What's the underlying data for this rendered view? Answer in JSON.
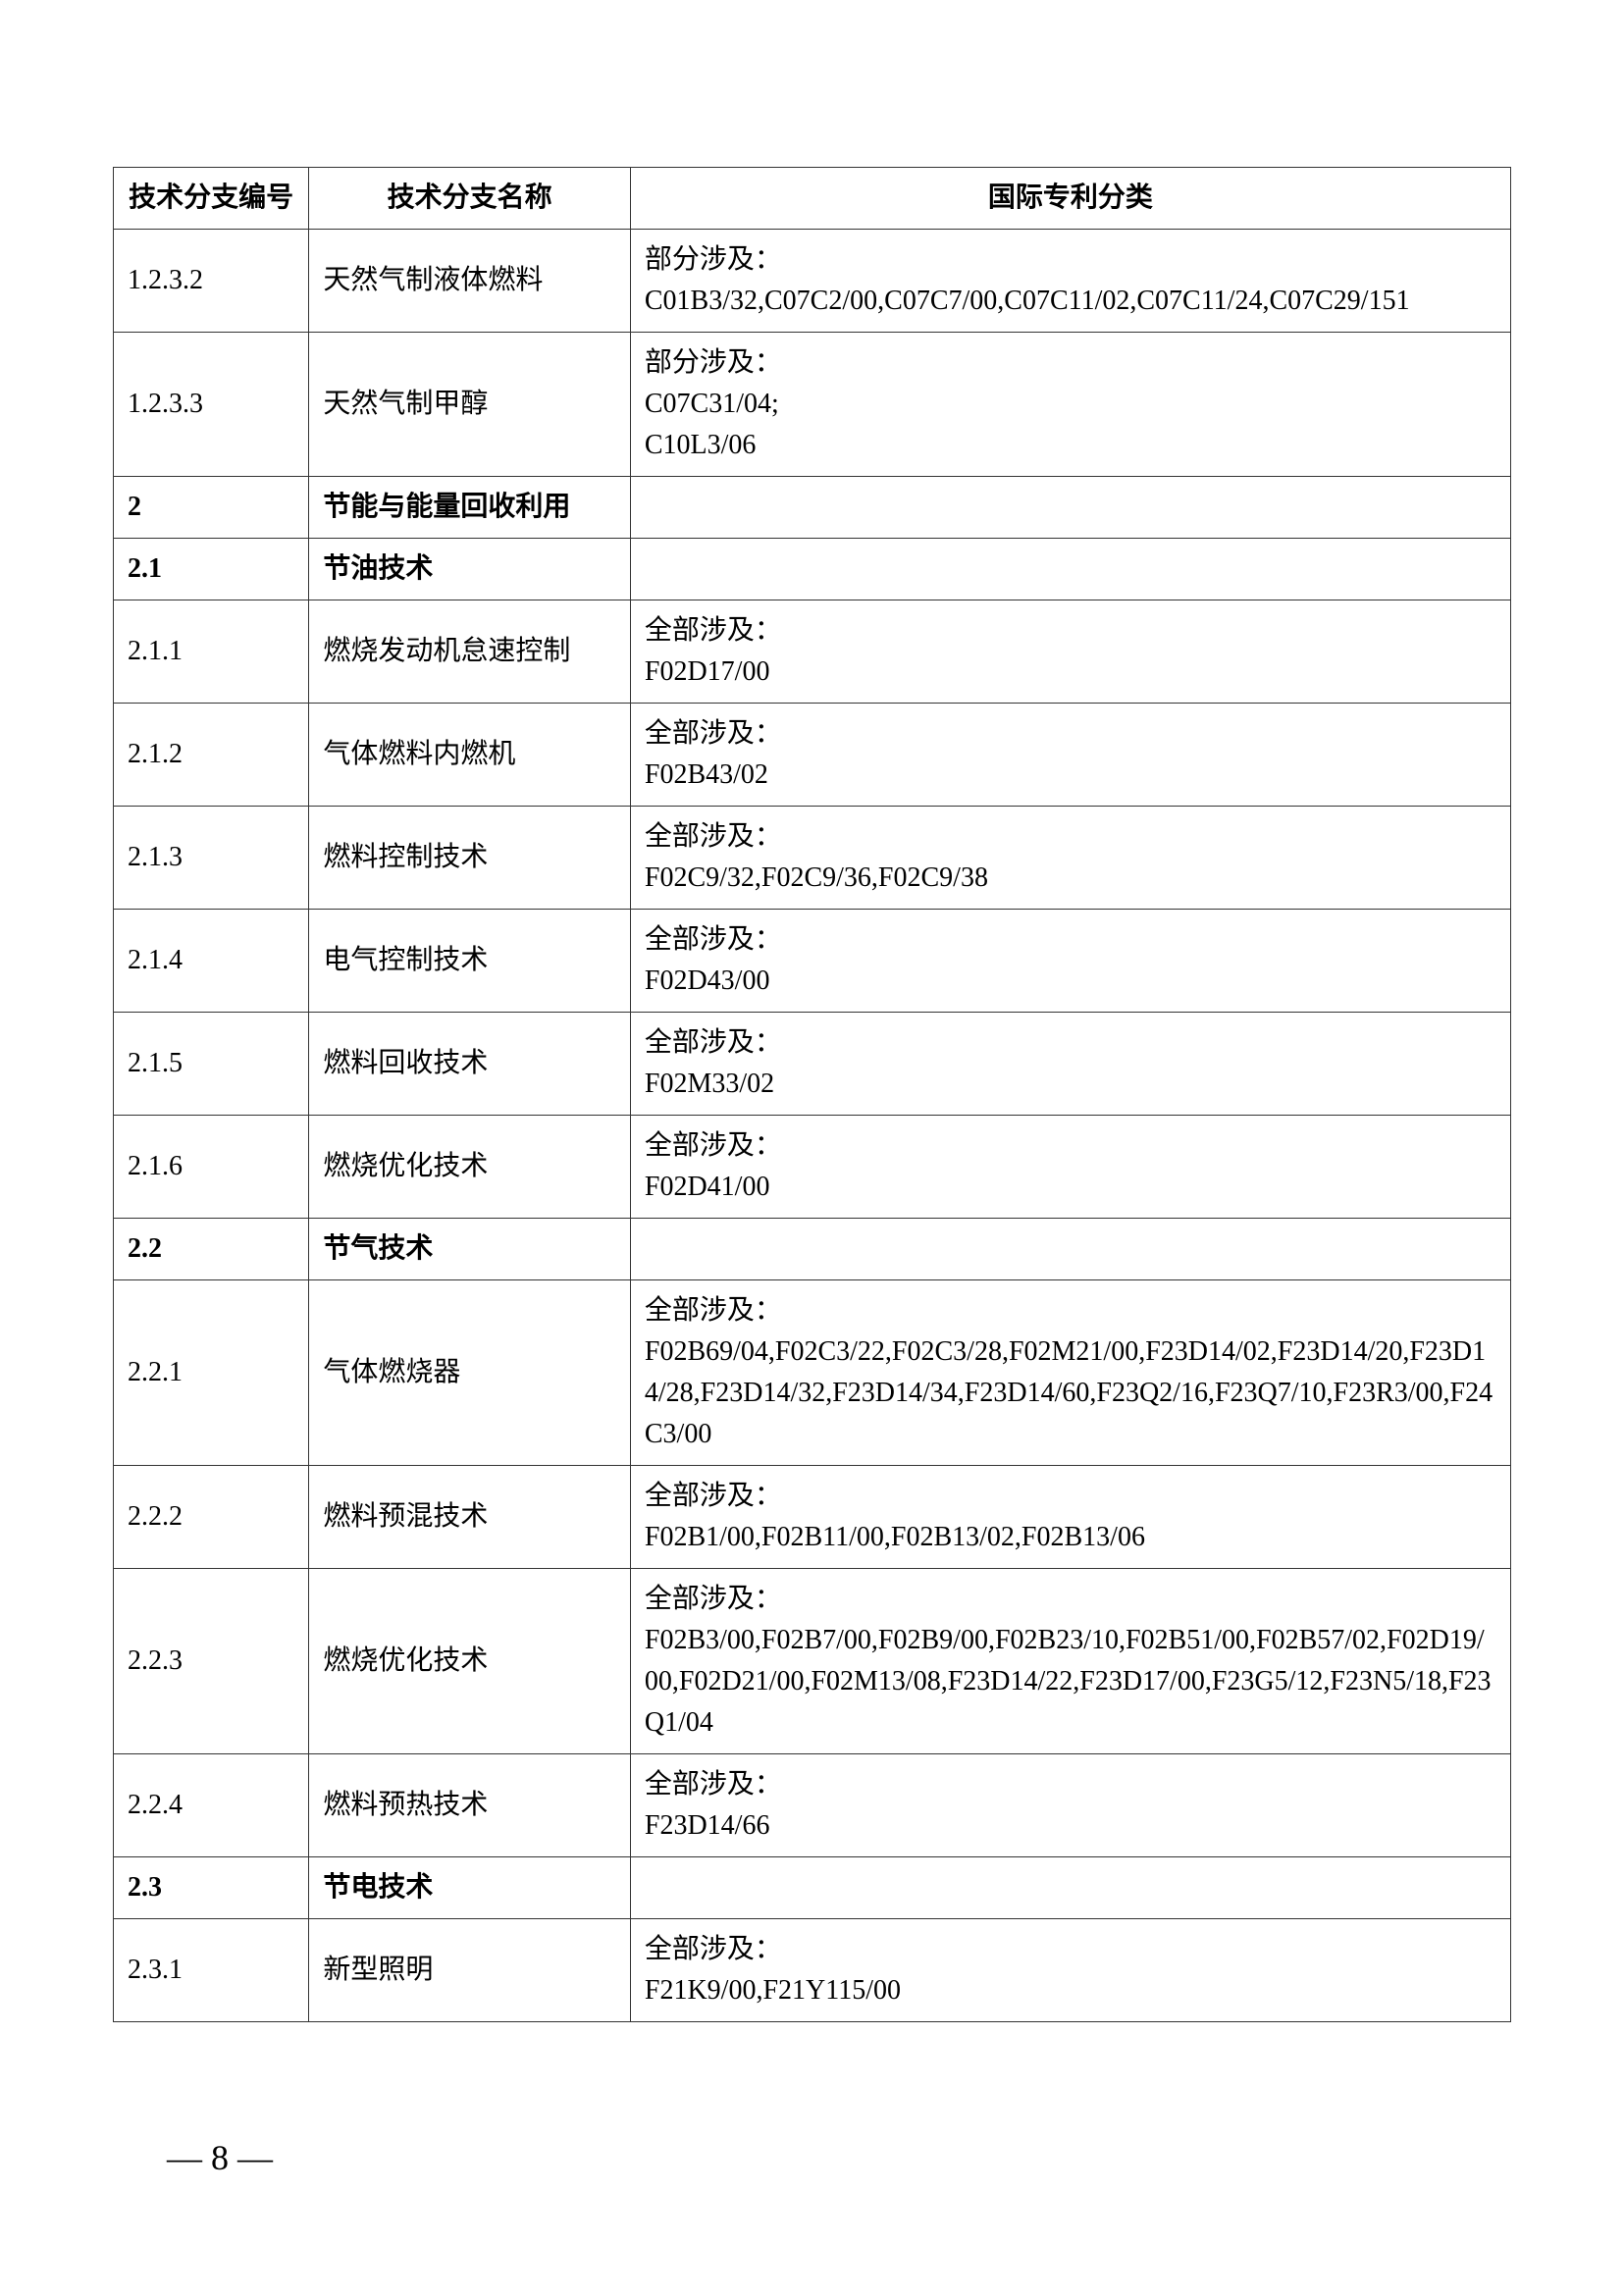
{
  "headers": {
    "code": "技术分支编号",
    "name": "技术分支名称",
    "ipc": "国际专利分类"
  },
  "rows": [
    {
      "code": "1.2.3.2",
      "name": "天然气制液体燃料",
      "ipc": "部分涉及：\nC01B3/32,C07C2/00,C07C7/00,C07C11/02,C07C11/24,C07C29/151",
      "bold": false
    },
    {
      "code": "1.2.3.3",
      "name": "天然气制甲醇",
      "ipc": "部分涉及：\nC07C31/04;\nC10L3/06",
      "bold": false
    },
    {
      "code": "2",
      "name": "节能与能量回收利用",
      "ipc": "",
      "bold": true
    },
    {
      "code": "2.1",
      "name": "节油技术",
      "ipc": "",
      "bold": true
    },
    {
      "code": "2.1.1",
      "name": "燃烧发动机怠速控制",
      "ipc": "全部涉及：\nF02D17/00",
      "bold": false
    },
    {
      "code": "2.1.2",
      "name": "气体燃料内燃机",
      "ipc": "全部涉及：\nF02B43/02",
      "bold": false
    },
    {
      "code": "2.1.3",
      "name": "燃料控制技术",
      "ipc": "全部涉及：\nF02C9/32,F02C9/36,F02C9/38",
      "bold": false
    },
    {
      "code": "2.1.4",
      "name": "电气控制技术",
      "ipc": "全部涉及：\nF02D43/00",
      "bold": false
    },
    {
      "code": "2.1.5",
      "name": "燃料回收技术",
      "ipc": "全部涉及：\nF02M33/02",
      "bold": false
    },
    {
      "code": "2.1.6",
      "name": "燃烧优化技术",
      "ipc": "全部涉及：\nF02D41/00",
      "bold": false
    },
    {
      "code": "2.2",
      "name": "节气技术",
      "ipc": "",
      "bold": true
    },
    {
      "code": "2.2.1",
      "name": "气体燃烧器",
      "ipc": "全部涉及：\nF02B69/04,F02C3/22,F02C3/28,F02M21/00,F23D14/02,F23D14/20,F23D14/28,F23D14/32,F23D14/34,F23D14/60,F23Q2/16,F23Q7/10,F23R3/00,F24C3/00",
      "bold": false
    },
    {
      "code": "2.2.2",
      "name": "燃料预混技术",
      "ipc": "全部涉及：\nF02B1/00,F02B11/00,F02B13/02,F02B13/06",
      "bold": false
    },
    {
      "code": "2.2.3",
      "name": "燃烧优化技术",
      "ipc": "全部涉及：\nF02B3/00,F02B7/00,F02B9/00,F02B23/10,F02B51/00,F02B57/02,F02D19/00,F02D21/00,F02M13/08,F23D14/22,F23D17/00,F23G5/12,F23N5/18,F23Q1/04",
      "bold": false
    },
    {
      "code": "2.2.4",
      "name": "燃料预热技术",
      "ipc": "全部涉及：\nF23D14/66",
      "bold": false
    },
    {
      "code": "2.3",
      "name": "节电技术",
      "ipc": "",
      "bold": true
    },
    {
      "code": "2.3.1",
      "name": "新型照明",
      "ipc": "全部涉及：\nF21K9/00,F21Y115/00",
      "bold": false
    }
  ],
  "pageNumber": "— 8 —"
}
